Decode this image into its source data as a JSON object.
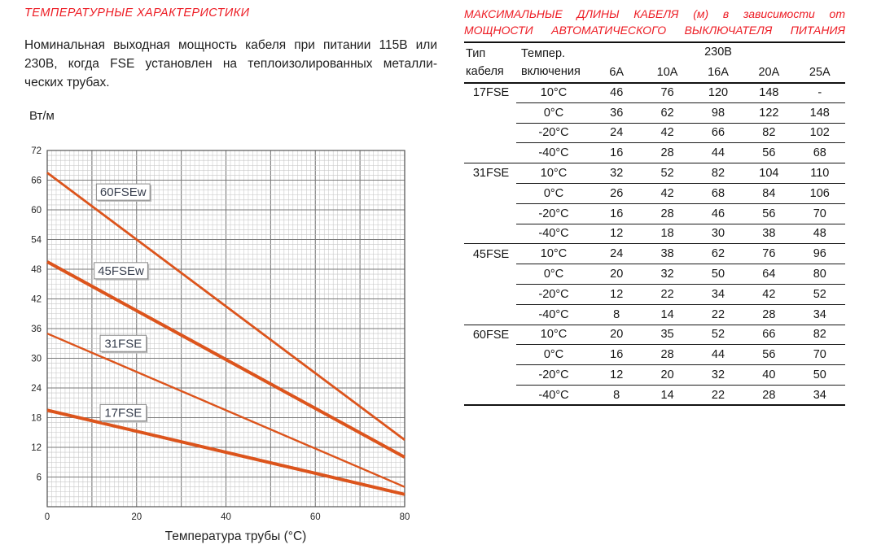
{
  "left": {
    "title": "ТЕМПЕРАТУРНЫЕ ХАРАКТЕРИСТИКИ",
    "paragraph_lines": [
      "Номинальная выходная мощность кабеля при питании 115В или",
      "230В, когда FSE установлен на теплоизолированных металли-",
      "ческих трубах."
    ]
  },
  "chart_data": {
    "type": "line",
    "title": "",
    "xlabel": "Температура трубы (°C)",
    "ylabel": "Вт/м",
    "xlim": [
      0,
      80
    ],
    "ylim": [
      0,
      72
    ],
    "x_ticks": [
      0,
      20,
      40,
      60,
      80
    ],
    "y_ticks": [
      6,
      12,
      18,
      24,
      30,
      36,
      42,
      48,
      54,
      60,
      66,
      72
    ],
    "grid": "fine graph-paper minor grid every 1 unit, darker major lines",
    "legend_position": "inline boxed labels on lines",
    "line_color": "#DC541C",
    "series": [
      {
        "name": "60FSEw",
        "x": [
          0,
          80
        ],
        "values": [
          67.5,
          13.5
        ],
        "stroke_width": 2.8,
        "label_pos": {
          "x": 17,
          "y": 63.6
        }
      },
      {
        "name": "45FSEw",
        "x": [
          0,
          80
        ],
        "values": [
          49.5,
          10
        ],
        "stroke_width": 4.0,
        "label_pos": {
          "x": 16.5,
          "y": 47.7
        }
      },
      {
        "name": "31FSE",
        "x": [
          0,
          80
        ],
        "values": [
          35,
          4
        ],
        "stroke_width": 2.4,
        "label_pos": {
          "x": 17,
          "y": 33
        }
      },
      {
        "name": "17FSE",
        "x": [
          0,
          80
        ],
        "values": [
          19.5,
          2.5
        ],
        "stroke_width": 4.0,
        "label_pos": {
          "x": 17,
          "y": 19
        }
      }
    ]
  },
  "table": {
    "title_lines": [
      "МАКСИМАЛЬНЫЕ ДЛИНЫ КАБЕЛЯ (м) в зависимости от",
      "МОЩНОСТИ АВТОМАТИЧЕСКОГО ВЫКЛЮЧАТЕЛЯ ПИТАНИЯ"
    ],
    "col1_header": "Тип кабеля",
    "col2_header": "Темпер. включения",
    "voltage_header": "230В",
    "amp_headers": [
      "6A",
      "10A",
      "16A",
      "20A",
      "25A"
    ],
    "groups": [
      {
        "type": "17FSE",
        "rows": [
          {
            "temp": "10°C",
            "values": [
              "46",
              "76",
              "120",
              "148",
              "-"
            ]
          },
          {
            "temp": "0°C",
            "values": [
              "36",
              "62",
              "98",
              "122",
              "148"
            ]
          },
          {
            "temp": "-20°C",
            "values": [
              "24",
              "42",
              "66",
              "82",
              "102"
            ]
          },
          {
            "temp": "-40°C",
            "values": [
              "16",
              "28",
              "44",
              "56",
              "68"
            ]
          }
        ]
      },
      {
        "type": "31FSE",
        "rows": [
          {
            "temp": "10°C",
            "values": [
              "32",
              "52",
              "82",
              "104",
              "110"
            ]
          },
          {
            "temp": "0°C",
            "values": [
              "26",
              "42",
              "68",
              "84",
              "106"
            ]
          },
          {
            "temp": "-20°C",
            "values": [
              "16",
              "28",
              "46",
              "56",
              "70"
            ]
          },
          {
            "temp": "-40°C",
            "values": [
              "12",
              "18",
              "30",
              "38",
              "48"
            ]
          }
        ]
      },
      {
        "type": "45FSE",
        "rows": [
          {
            "temp": "10°C",
            "values": [
              "24",
              "38",
              "62",
              "76",
              "96"
            ]
          },
          {
            "temp": "0°C",
            "values": [
              "20",
              "32",
              "50",
              "64",
              "80"
            ]
          },
          {
            "temp": "-20°C",
            "values": [
              "12",
              "22",
              "34",
              "42",
              "52"
            ]
          },
          {
            "temp": "-40°C",
            "values": [
              "8",
              "14",
              "22",
              "28",
              "34"
            ]
          }
        ]
      },
      {
        "type": "60FSE",
        "rows": [
          {
            "temp": "10°C",
            "values": [
              "20",
              "35",
              "52",
              "66",
              "82"
            ]
          },
          {
            "temp": "0°C",
            "values": [
              "16",
              "28",
              "44",
              "56",
              "70"
            ]
          },
          {
            "temp": "-20°C",
            "values": [
              "12",
              "20",
              "32",
              "40",
              "50"
            ]
          },
          {
            "temp": "-40°C",
            "values": [
              "8",
              "14",
              "22",
              "28",
              "34"
            ]
          }
        ]
      }
    ]
  },
  "colors": {
    "heading_red": "#ED1C24",
    "chart_line": "#DC541C",
    "grid_minor": "#c6c6c6",
    "grid_major": "#7a7a7a",
    "label_text": "#3A4150"
  }
}
